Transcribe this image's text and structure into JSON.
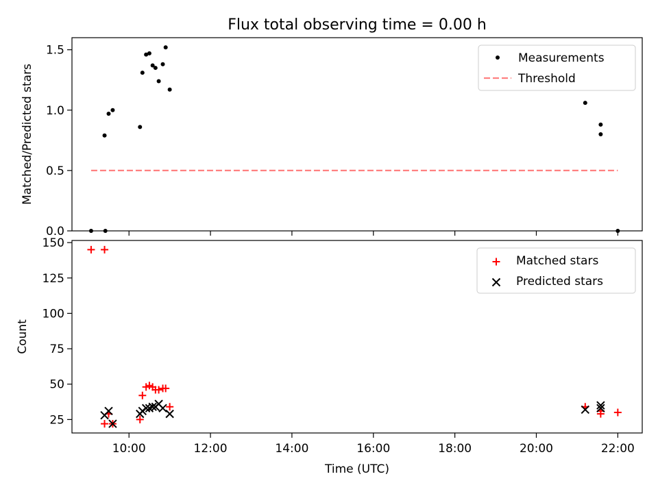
{
  "title": "Flux total observing time = 0.00 h",
  "colors": {
    "measurement": "#000000",
    "threshold": "#ff8080",
    "matched": "#ff0000",
    "predicted": "#000000",
    "axes": "#000000"
  },
  "chart_data": [
    {
      "type": "scatter",
      "title": "Flux total observing time = 0.00 h",
      "xlabel": "",
      "ylabel": "Matched/Predicted stars",
      "xlim": [
        8.6,
        22.6
      ],
      "ylim": [
        0,
        1.6
      ],
      "x_ticks": [
        10,
        12,
        14,
        16,
        18,
        20,
        22
      ],
      "y_ticks": [
        0.0,
        0.5,
        1.0,
        1.5
      ],
      "y_tick_labels": [
        "0.0",
        "0.5",
        "1.0",
        "1.5"
      ],
      "x_tick_labels_visible": false,
      "grid": false,
      "legend": {
        "position": "top-right",
        "entries": [
          "Measurements",
          "Threshold"
        ]
      },
      "series": [
        {
          "name": "Measurements",
          "kind": "points",
          "x": [
            9.07,
            9.4,
            9.42,
            9.5,
            9.6,
            10.27,
            10.33,
            10.42,
            10.5,
            10.58,
            10.65,
            10.73,
            10.83,
            10.9,
            11.0,
            21.2,
            21.58,
            21.58,
            22.0
          ],
          "y": [
            0.0,
            0.79,
            0.0,
            0.97,
            1.0,
            0.86,
            1.31,
            1.46,
            1.47,
            1.37,
            1.35,
            1.24,
            1.38,
            1.52,
            1.17,
            1.06,
            0.88,
            0.8,
            0.0
          ]
        },
        {
          "name": "Threshold",
          "kind": "dashed-line",
          "x": [
            9.07,
            22.0
          ],
          "y": [
            0.5,
            0.5
          ]
        }
      ]
    },
    {
      "type": "scatter",
      "title": "",
      "xlabel": "Time (UTC)",
      "ylabel": "Count",
      "xlim": [
        8.6,
        22.6
      ],
      "ylim": [
        15.5,
        151.5
      ],
      "x_ticks": [
        10,
        12,
        14,
        16,
        18,
        20,
        22
      ],
      "x_tick_labels": [
        "10:00",
        "12:00",
        "14:00",
        "16:00",
        "18:00",
        "20:00",
        "22:00"
      ],
      "y_ticks": [
        25,
        50,
        75,
        100,
        125,
        150
      ],
      "y_tick_labels": [
        "25",
        "50",
        "75",
        "100",
        "125",
        "150"
      ],
      "grid": false,
      "legend": {
        "position": "top-right",
        "entries": [
          "Matched stars",
          "Predicted stars"
        ]
      },
      "series": [
        {
          "name": "Matched stars",
          "marker": "plus",
          "x": [
            9.07,
            9.4,
            9.4,
            9.5,
            9.6,
            10.27,
            10.33,
            10.42,
            10.5,
            10.58,
            10.65,
            10.73,
            10.83,
            10.9,
            11.0,
            21.2,
            21.58,
            21.58,
            22.0
          ],
          "y": [
            145,
            145,
            22,
            29,
            22,
            25,
            42,
            48,
            49,
            48,
            46,
            46,
            47,
            47,
            34,
            34,
            29,
            31,
            30
          ]
        },
        {
          "name": "Predicted stars",
          "marker": "x",
          "x": [
            9.4,
            9.5,
            9.6,
            10.27,
            10.33,
            10.42,
            10.5,
            10.58,
            10.65,
            10.73,
            10.83,
            11.0,
            21.2,
            21.58,
            21.58
          ],
          "y": [
            28,
            31,
            22,
            29,
            31,
            33,
            33,
            34,
            34,
            36,
            33,
            29,
            32,
            33,
            35
          ]
        }
      ]
    }
  ]
}
